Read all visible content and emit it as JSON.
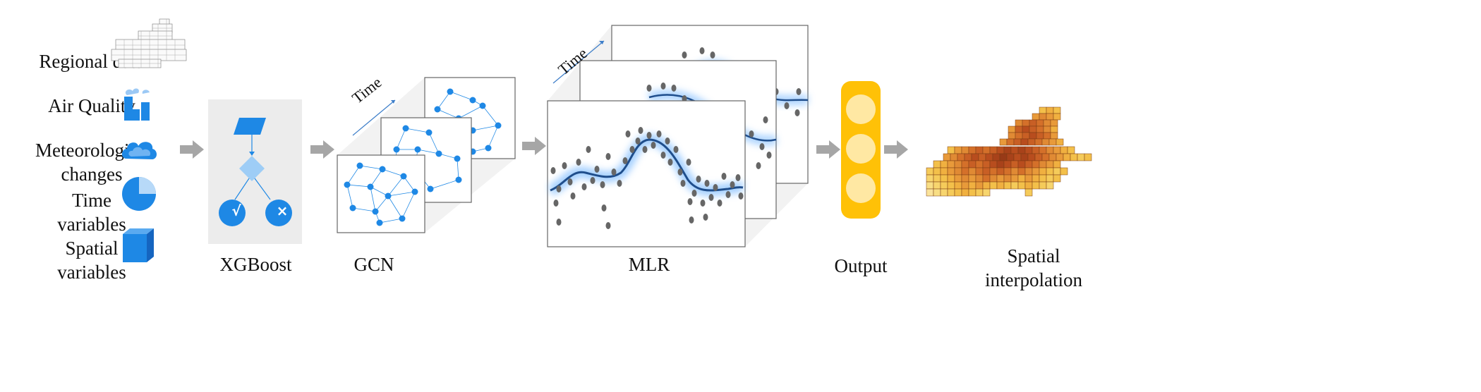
{
  "inputs": [
    {
      "label": "Regional data",
      "icon": "regional-map-icon"
    },
    {
      "label": "Air Quality",
      "icon": "factory-icon"
    },
    {
      "label": "Meteorological changes",
      "icon": "cloud-icon"
    },
    {
      "label": "Time variables",
      "icon": "pie-clock-icon"
    },
    {
      "label": "Spatial variables",
      "icon": "cube-icon"
    }
  ],
  "stages": {
    "xgboost": "XGBoost",
    "gcn": "GCN",
    "mlr": "MLR",
    "output": "Output",
    "interpolation": "Spatial interpolation"
  },
  "time_label": "Time",
  "decision_tree": {
    "yes_symbol": "√",
    "no_symbol": "×"
  },
  "colors": {
    "accent_blue": "#1e88e5",
    "curve_blue": "#1f4e8c",
    "glow_blue": "#5aa9ff",
    "output_yellow": "#ffc107",
    "output_node": "#ffe8a3",
    "arrow_gray": "#a6a6a6",
    "panel_gray": "#ececec",
    "dot_gray": "#666666"
  }
}
